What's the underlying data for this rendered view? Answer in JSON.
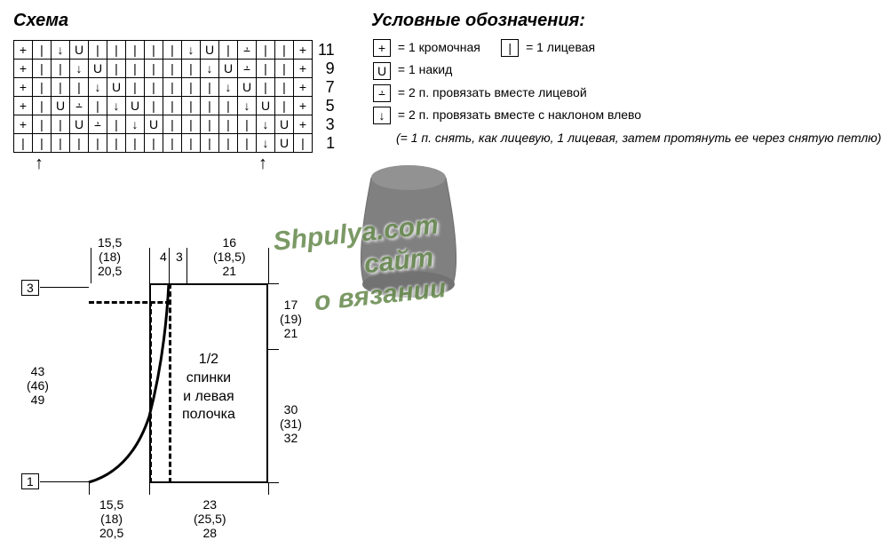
{
  "titles": {
    "chart": "Схема",
    "legend": "Условные обозначения:"
  },
  "chart": {
    "cols": 16,
    "row_numbers": [
      "11",
      "9",
      "7",
      "5",
      "3",
      "1"
    ],
    "symbols": {
      "plus": "+",
      "knit": "|",
      "yo": "U",
      "k2tog": "⨩",
      "ssk": "↓"
    },
    "grid": [
      [
        "+",
        "|",
        "↓",
        "U",
        "|",
        "|",
        "|",
        "|",
        "|",
        "↓",
        "U",
        "|",
        "⨩",
        "|",
        "|",
        "+"
      ],
      [
        "+",
        "|",
        "|",
        "↓",
        "U",
        "|",
        "|",
        "|",
        "|",
        "|",
        "↓",
        "U",
        "⨩",
        "|",
        "|",
        "+"
      ],
      [
        "+",
        "|",
        "|",
        "|",
        "↓",
        "U",
        "|",
        "|",
        "|",
        "|",
        "|",
        "↓",
        "U",
        "|",
        "|",
        "+"
      ],
      [
        "+",
        "|",
        "U",
        "⨩",
        "|",
        "↓",
        "U",
        "|",
        "|",
        "|",
        "|",
        "|",
        "↓",
        "U",
        "|",
        "+"
      ],
      [
        "+",
        "|",
        "|",
        "U",
        "⨩",
        "|",
        "↓",
        "U",
        "|",
        "|",
        "|",
        "|",
        "|",
        "↓",
        "U",
        "+"
      ],
      [
        "|",
        "|",
        "|",
        "|",
        "|",
        "|",
        "|",
        "|",
        "|",
        "|",
        "|",
        "|",
        "|",
        "↓",
        "U",
        "|"
      ]
    ],
    "arrow_cols": [
      1,
      13
    ]
  },
  "legend": {
    "items": [
      {
        "sym": "+",
        "text": "= 1 кромочная"
      },
      {
        "sym": "|",
        "text": "= 1 лицевая",
        "inline_right": true
      },
      {
        "sym": "U",
        "text": "= 1 накид"
      },
      {
        "sym": "⨩",
        "text": "= 2 п. провязать вместе лицевой"
      },
      {
        "sym": "↓",
        "text": "= 2 п. провязать вместе с наклоном влево"
      }
    ],
    "note": "(= 1 п. снять, как лицевую, 1 лицевая, затем протянуть ее через снятую петлю)"
  },
  "schematic": {
    "label": "1/2\nспинки\nи левая\nполочка",
    "top_dims": {
      "left": "15,5\n(18)\n20,5",
      "mid_l": "4",
      "mid_r": "3",
      "right": "16\n(18,5)\n21"
    },
    "left_box": "3",
    "left_dim": "43\n(46)\n49",
    "right_dims": {
      "upper": "17\n(19)\n21",
      "lower": "30\n(31)\n32"
    },
    "bottom_left_box": "1",
    "bottom_dims": {
      "left": "15,5\n(18)\n20,5",
      "right": "23\n(25,5)\n28"
    }
  },
  "watermark": {
    "line1": "Shpulya.com",
    "line2": "сайт",
    "line3": "о вязании"
  }
}
